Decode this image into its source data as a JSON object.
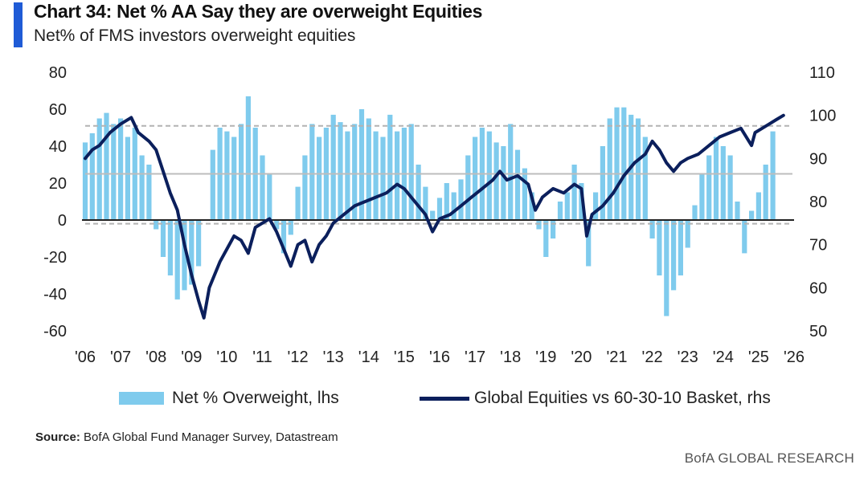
{
  "header": {
    "title": "Chart 34: Net % AA Say they are overweight Equities",
    "subtitle": "Net% of FMS investors overweight equities"
  },
  "legend": {
    "bars_label": "Net % Overweight, lhs",
    "line_label": "Global Equities vs 60-30-10 Basket, rhs"
  },
  "footer": {
    "source_label": "Source:",
    "source_text": "BofA Global Fund Manager Survey, Datastream",
    "brand": "BofA GLOBAL RESEARCH"
  },
  "colors": {
    "accent": "#1f5bd6",
    "bars": "#7fcbed",
    "line": "#0b1f5c",
    "dashed": "#b3b3b3",
    "mid_line": "#bdbdbd",
    "zero_line": "#222222"
  },
  "chart_data": {
    "type": "bar+line",
    "x_tick_labels": [
      "'06",
      "'07",
      "'08",
      "'09",
      "'10",
      "'11",
      "'12",
      "'13",
      "'14",
      "'15",
      "'16",
      "'17",
      "'18",
      "'19",
      "'20",
      "'21",
      "'22",
      "'23",
      "'24",
      "'25",
      "'26"
    ],
    "x_range": [
      2006,
      2026
    ],
    "y_left": {
      "range": [
        -60,
        80
      ],
      "ticks": [
        80,
        60,
        40,
        20,
        0,
        -20,
        -40,
        -60
      ]
    },
    "y_right": {
      "range": [
        50,
        110
      ],
      "ticks": [
        110,
        100,
        90,
        80,
        70,
        60,
        50
      ]
    },
    "reference_lines_left": {
      "dashed": [
        51,
        -2
      ],
      "solid": [
        25
      ]
    },
    "bars_series": {
      "name": "Net % Overweight, lhs",
      "axis": "left",
      "points": [
        [
          2006.0,
          42
        ],
        [
          2006.2,
          47
        ],
        [
          2006.4,
          55
        ],
        [
          2006.6,
          58
        ],
        [
          2006.8,
          52
        ],
        [
          2007.0,
          55
        ],
        [
          2007.2,
          45
        ],
        [
          2007.4,
          50
        ],
        [
          2007.6,
          35
        ],
        [
          2007.8,
          30
        ],
        [
          2008.0,
          -5
        ],
        [
          2008.2,
          -20
        ],
        [
          2008.4,
          -30
        ],
        [
          2008.6,
          -43
        ],
        [
          2008.8,
          -38
        ],
        [
          2009.0,
          -35
        ],
        [
          2009.2,
          -25
        ],
        [
          2009.4,
          0
        ],
        [
          2009.6,
          38
        ],
        [
          2009.8,
          50
        ],
        [
          2010.0,
          48
        ],
        [
          2010.2,
          45
        ],
        [
          2010.4,
          52
        ],
        [
          2010.6,
          67
        ],
        [
          2010.8,
          50
        ],
        [
          2011.0,
          35
        ],
        [
          2011.2,
          25
        ],
        [
          2011.4,
          -5
        ],
        [
          2011.6,
          -18
        ],
        [
          2011.8,
          -8
        ],
        [
          2012.0,
          18
        ],
        [
          2012.2,
          35
        ],
        [
          2012.4,
          52
        ],
        [
          2012.6,
          45
        ],
        [
          2012.8,
          50
        ],
        [
          2013.0,
          57
        ],
        [
          2013.2,
          53
        ],
        [
          2013.4,
          48
        ],
        [
          2013.6,
          52
        ],
        [
          2013.8,
          60
        ],
        [
          2014.0,
          55
        ],
        [
          2014.2,
          48
        ],
        [
          2014.4,
          45
        ],
        [
          2014.6,
          57
        ],
        [
          2014.8,
          48
        ],
        [
          2015.0,
          50
        ],
        [
          2015.2,
          52
        ],
        [
          2015.4,
          30
        ],
        [
          2015.6,
          18
        ],
        [
          2015.8,
          5
        ],
        [
          2016.0,
          12
        ],
        [
          2016.2,
          20
        ],
        [
          2016.4,
          15
        ],
        [
          2016.6,
          22
        ],
        [
          2016.8,
          35
        ],
        [
          2017.0,
          45
        ],
        [
          2017.2,
          50
        ],
        [
          2017.4,
          48
        ],
        [
          2017.6,
          42
        ],
        [
          2017.8,
          40
        ],
        [
          2018.0,
          52
        ],
        [
          2018.2,
          38
        ],
        [
          2018.4,
          28
        ],
        [
          2018.6,
          15
        ],
        [
          2018.8,
          -5
        ],
        [
          2019.0,
          -20
        ],
        [
          2019.2,
          -10
        ],
        [
          2019.4,
          10
        ],
        [
          2019.6,
          15
        ],
        [
          2019.8,
          30
        ],
        [
          2020.0,
          20
        ],
        [
          2020.2,
          -25
        ],
        [
          2020.4,
          15
        ],
        [
          2020.6,
          40
        ],
        [
          2020.8,
          55
        ],
        [
          2021.0,
          61
        ],
        [
          2021.2,
          61
        ],
        [
          2021.4,
          57
        ],
        [
          2021.6,
          55
        ],
        [
          2021.8,
          45
        ],
        [
          2022.0,
          -10
        ],
        [
          2022.2,
          -30
        ],
        [
          2022.4,
          -52
        ],
        [
          2022.6,
          -38
        ],
        [
          2022.8,
          -30
        ],
        [
          2023.0,
          -15
        ],
        [
          2023.2,
          8
        ],
        [
          2023.4,
          25
        ],
        [
          2023.6,
          35
        ],
        [
          2023.8,
          45
        ],
        [
          2024.0,
          40
        ],
        [
          2024.2,
          35
        ],
        [
          2024.4,
          10
        ],
        [
          2024.6,
          -18
        ],
        [
          2024.8,
          5
        ],
        [
          2025.0,
          15
        ],
        [
          2025.2,
          30
        ],
        [
          2025.4,
          48
        ]
      ]
    },
    "line_series": {
      "name": "Global Equities vs 60-30-10 Basket, rhs",
      "axis": "right",
      "points": [
        [
          2006.0,
          90
        ],
        [
          2006.2,
          92
        ],
        [
          2006.4,
          93
        ],
        [
          2006.7,
          96
        ],
        [
          2007.0,
          98
        ],
        [
          2007.3,
          99.5
        ],
        [
          2007.5,
          96
        ],
        [
          2007.8,
          94
        ],
        [
          2008.0,
          92
        ],
        [
          2008.2,
          87
        ],
        [
          2008.4,
          82
        ],
        [
          2008.6,
          78
        ],
        [
          2008.8,
          70
        ],
        [
          2009.0,
          63
        ],
        [
          2009.2,
          57
        ],
        [
          2009.35,
          53
        ],
        [
          2009.5,
          60
        ],
        [
          2009.8,
          66
        ],
        [
          2010.0,
          69
        ],
        [
          2010.2,
          72
        ],
        [
          2010.4,
          71
        ],
        [
          2010.6,
          68
        ],
        [
          2010.8,
          74
        ],
        [
          2011.0,
          75
        ],
        [
          2011.2,
          76
        ],
        [
          2011.4,
          73
        ],
        [
          2011.6,
          69
        ],
        [
          2011.8,
          65
        ],
        [
          2012.0,
          70
        ],
        [
          2012.2,
          71
        ],
        [
          2012.4,
          66
        ],
        [
          2012.6,
          70
        ],
        [
          2012.8,
          72
        ],
        [
          2013.0,
          75
        ],
        [
          2013.3,
          77
        ],
        [
          2013.6,
          79
        ],
        [
          2013.9,
          80
        ],
        [
          2014.2,
          81
        ],
        [
          2014.5,
          82
        ],
        [
          2014.8,
          84
        ],
        [
          2015.0,
          83
        ],
        [
          2015.3,
          80
        ],
        [
          2015.6,
          77
        ],
        [
          2015.8,
          73
        ],
        [
          2016.0,
          76
        ],
        [
          2016.3,
          77
        ],
        [
          2016.6,
          79
        ],
        [
          2016.9,
          81
        ],
        [
          2017.2,
          83
        ],
        [
          2017.5,
          85
        ],
        [
          2017.7,
          87
        ],
        [
          2017.9,
          85
        ],
        [
          2018.2,
          86
        ],
        [
          2018.5,
          84
        ],
        [
          2018.7,
          78
        ],
        [
          2018.9,
          81
        ],
        [
          2019.2,
          83
        ],
        [
          2019.5,
          82
        ],
        [
          2019.8,
          84
        ],
        [
          2020.0,
          83
        ],
        [
          2020.15,
          72
        ],
        [
          2020.3,
          77
        ],
        [
          2020.6,
          79
        ],
        [
          2020.9,
          82
        ],
        [
          2021.2,
          86
        ],
        [
          2021.5,
          89
        ],
        [
          2021.8,
          91
        ],
        [
          2022.0,
          94
        ],
        [
          2022.2,
          92
        ],
        [
          2022.4,
          89
        ],
        [
          2022.6,
          87
        ],
        [
          2022.8,
          89
        ],
        [
          2023.0,
          90
        ],
        [
          2023.3,
          91
        ],
        [
          2023.6,
          93
        ],
        [
          2023.9,
          95
        ],
        [
          2024.2,
          96
        ],
        [
          2024.5,
          97
        ],
        [
          2024.8,
          93
        ],
        [
          2024.9,
          96
        ],
        [
          2025.1,
          97
        ],
        [
          2025.3,
          98
        ],
        [
          2025.5,
          99
        ],
        [
          2025.7,
          100
        ]
      ]
    }
  }
}
